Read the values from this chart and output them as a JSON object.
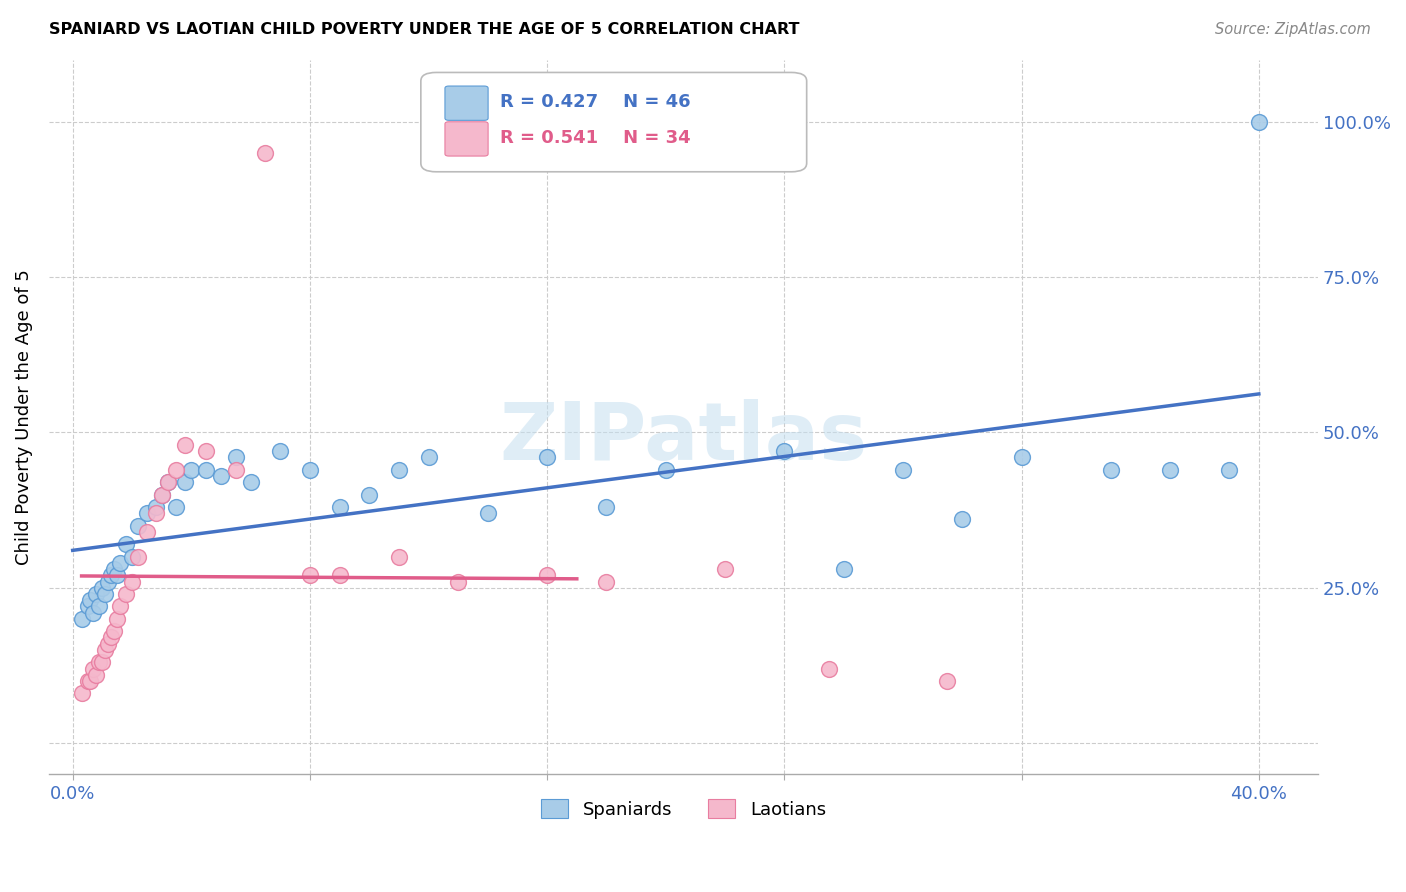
{
  "title": "SPANIARD VS LAOTIAN CHILD POVERTY UNDER THE AGE OF 5 CORRELATION CHART",
  "source": "Source: ZipAtlas.com",
  "ylabel": "Child Poverty Under the Age of 5",
  "ytick_labels": [
    "",
    "25.0%",
    "50.0%",
    "75.0%",
    "100.0%"
  ],
  "ytick_vals": [
    0.0,
    0.25,
    0.5,
    0.75,
    1.0
  ],
  "xtick_vals": [
    0.0,
    0.08,
    0.16,
    0.24,
    0.32,
    0.4
  ],
  "xtick_labels": [
    "0.0%",
    "",
    "",
    "",
    "",
    "40.0%"
  ],
  "blue_color": "#a8cce8",
  "pink_color": "#f5b8cc",
  "blue_edge_color": "#5b9bd5",
  "pink_edge_color": "#e87da0",
  "blue_line_color": "#4472c4",
  "pink_line_color": "#e05c8a",
  "label_color": "#4472c4",
  "watermark": "ZIPatlas",
  "spaniards_x": [
    0.003,
    0.005,
    0.006,
    0.007,
    0.008,
    0.009,
    0.01,
    0.011,
    0.012,
    0.013,
    0.014,
    0.015,
    0.016,
    0.018,
    0.02,
    0.022,
    0.025,
    0.028,
    0.03,
    0.032,
    0.035,
    0.038,
    0.04,
    0.045,
    0.05,
    0.055,
    0.06,
    0.07,
    0.08,
    0.09,
    0.1,
    0.11,
    0.12,
    0.14,
    0.16,
    0.18,
    0.2,
    0.24,
    0.26,
    0.28,
    0.3,
    0.32,
    0.35,
    0.37,
    0.39,
    0.4
  ],
  "spaniards_y": [
    0.2,
    0.22,
    0.23,
    0.21,
    0.24,
    0.22,
    0.25,
    0.24,
    0.26,
    0.27,
    0.28,
    0.27,
    0.29,
    0.32,
    0.3,
    0.35,
    0.37,
    0.38,
    0.4,
    0.42,
    0.38,
    0.42,
    0.44,
    0.44,
    0.43,
    0.46,
    0.42,
    0.47,
    0.44,
    0.38,
    0.4,
    0.44,
    0.46,
    0.37,
    0.46,
    0.38,
    0.44,
    0.47,
    0.28,
    0.44,
    0.36,
    0.46,
    0.44,
    0.44,
    0.44,
    1.0
  ],
  "laotians_x": [
    0.003,
    0.005,
    0.006,
    0.007,
    0.008,
    0.009,
    0.01,
    0.011,
    0.012,
    0.013,
    0.014,
    0.015,
    0.016,
    0.018,
    0.02,
    0.022,
    0.025,
    0.028,
    0.03,
    0.032,
    0.035,
    0.038,
    0.045,
    0.055,
    0.065,
    0.08,
    0.09,
    0.11,
    0.13,
    0.16,
    0.18,
    0.22,
    0.255,
    0.295
  ],
  "laotians_y": [
    0.08,
    0.1,
    0.1,
    0.12,
    0.11,
    0.13,
    0.13,
    0.15,
    0.16,
    0.17,
    0.18,
    0.2,
    0.22,
    0.24,
    0.26,
    0.3,
    0.34,
    0.37,
    0.4,
    0.42,
    0.44,
    0.48,
    0.47,
    0.44,
    0.95,
    0.27,
    0.27,
    0.3,
    0.26,
    0.27,
    0.26,
    0.28,
    0.12,
    0.1
  ]
}
